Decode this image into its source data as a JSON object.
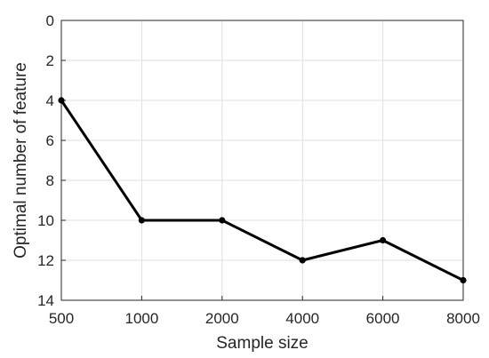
{
  "chart_data": {
    "type": "line",
    "title": "",
    "xlabel": "Sample size",
    "ylabel": "Optimal number of feature",
    "categories": [
      "500",
      "1000",
      "2000",
      "4000",
      "6000",
      "8000"
    ],
    "series": [
      {
        "values": [
          4,
          10,
          10,
          12,
          11,
          13
        ]
      }
    ],
    "ylim": [
      0,
      14
    ],
    "y_reversed": true,
    "yticks": [
      0,
      2,
      4,
      6,
      8,
      10,
      12,
      14
    ],
    "grid": true,
    "legend": "none",
    "colors": {
      "line": "#000000",
      "grid": "#dfdfdf",
      "axis": "#262626"
    }
  }
}
